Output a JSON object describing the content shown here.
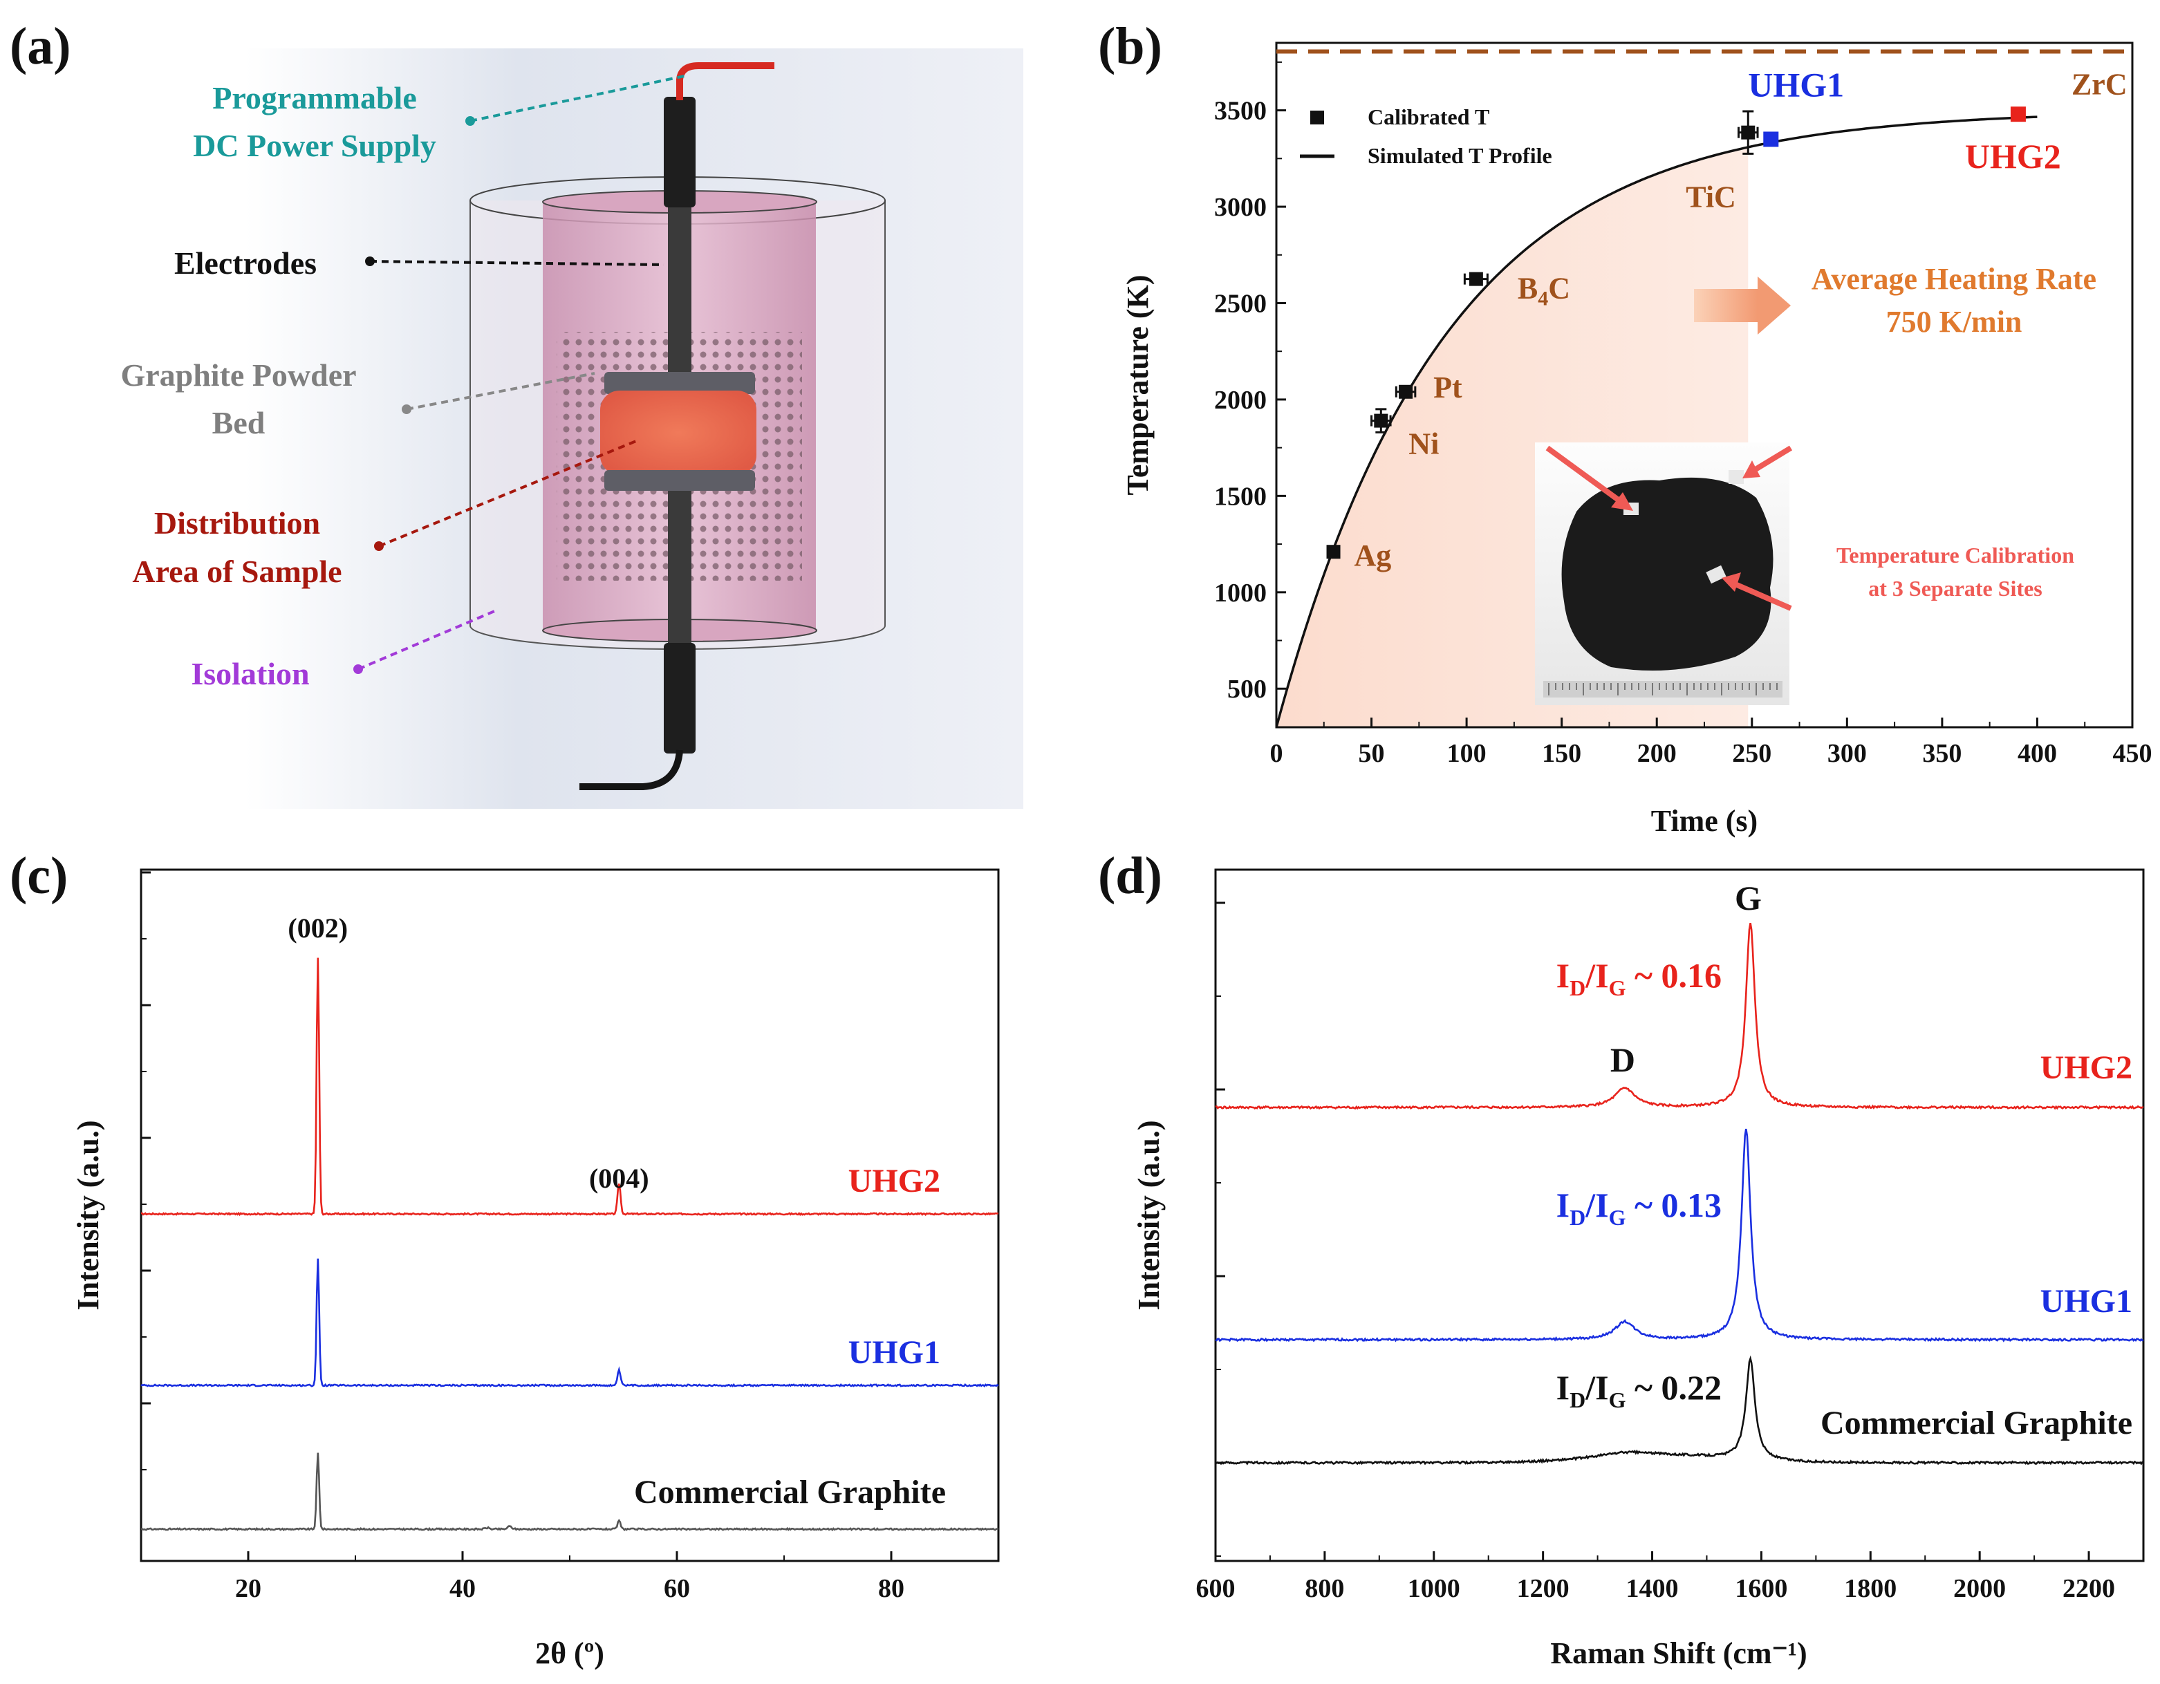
{
  "panel_labels": [
    "(a)",
    "(b)",
    "(c)",
    "(d)"
  ],
  "colors": {
    "red": "#e8231c",
    "blue": "#1a2fe0",
    "black": "#111111",
    "brown": "#a0521c",
    "orange": "#e07a2e",
    "teal": "#1a9a9a",
    "darkred": "#a6180e",
    "gray": "#7f7f7f",
    "purple": "#a23ad8",
    "pink": "#f4a9a4"
  },
  "panel_a": {
    "labels": {
      "power": [
        "Programmable",
        "DC Power Supply"
      ],
      "electrodes": "Electrodes",
      "powder": [
        "Graphite Powder",
        "Bed"
      ],
      "sample": [
        "Distribution",
        "Area of Sample"
      ],
      "isolation": "Isolation"
    }
  },
  "chart_data": [
    {
      "panel": "(b)",
      "type": "scatter",
      "xlabel": "Time (s)",
      "ylabel": "Temperature (K)",
      "xlim": [
        0,
        450
      ],
      "ylim": [
        300,
        3850
      ],
      "xticks": [
        0,
        50,
        100,
        150,
        200,
        250,
        300,
        350,
        400,
        450
      ],
      "yticks": [
        500,
        1000,
        1500,
        2000,
        2500,
        3000,
        3500
      ],
      "legend": [
        "Calibrated T",
        "Simulated T Profile"
      ],
      "calibrated_points": [
        {
          "label": "Ag",
          "t": 30,
          "T": 1210,
          "xerr": 2,
          "yerr": 15
        },
        {
          "label": "Ni",
          "t": 55,
          "T": 1890,
          "xerr": 5,
          "yerr": 60
        },
        {
          "label": "Pt",
          "t": 68,
          "T": 2040,
          "xerr": 5,
          "yerr": 20
        },
        {
          "label": "B4C",
          "t": 105,
          "T": 2625,
          "xerr": 6,
          "yerr": 20
        },
        {
          "label": "TiC",
          "t": 248,
          "T": 3385,
          "xerr": 5,
          "yerr": 110
        }
      ],
      "sample_points": [
        {
          "label": "UHG1",
          "t": 260,
          "T": 3350,
          "color": "#1a2fe0"
        },
        {
          "label": "UHG2",
          "t": 390,
          "T": 3480,
          "color": "#e8231c"
        }
      ],
      "simulated_profile": {
        "model": "T = 3500 - 3200*exp(-t/88)",
        "t_range": [
          0,
          400
        ]
      },
      "zrc_line_T": 3805,
      "zrc_label": "ZrC",
      "annotations": {
        "rate_title": "Average Heating Rate",
        "rate_value": "750 K/min",
        "inset_caption": [
          "Temperature Calibration",
          "at 3 Separate Sites"
        ]
      }
    },
    {
      "panel": "(c)",
      "type": "line",
      "xlabel": "2θ (º)",
      "ylabel": "Intensity (a.u.)",
      "xlim": [
        10,
        90
      ],
      "xticks": [
        20,
        40,
        60,
        80
      ],
      "peaks_2theta": [
        26.5,
        54.6
      ],
      "peak_labels": [
        "(002)",
        "(004)"
      ],
      "series": [
        {
          "name": "UHG2",
          "color": "#e8231c",
          "peak_002": 1.0,
          "peak_004": 0.04
        },
        {
          "name": "UHG1",
          "color": "#1a2fe0",
          "peak_002": 0.76,
          "peak_004": 0.03
        },
        {
          "name": "Commercial Graphite",
          "color": "#555555",
          "peak_002": 0.55,
          "peak_004": 0.02
        }
      ]
    },
    {
      "panel": "(d)",
      "type": "line",
      "xlabel": "Raman Shift (cm⁻¹)",
      "ylabel": "Intensity (a.u.)",
      "xlim": [
        600,
        2300
      ],
      "xticks": [
        600,
        800,
        1000,
        1200,
        1400,
        1600,
        1800,
        2000,
        2200
      ],
      "bands": {
        "D": 1350,
        "G": 1580
      },
      "band_labels": [
        "D",
        "G"
      ],
      "ratio_prefix": "I",
      "ratio_sub_d": "D",
      "ratio_sub_g": "G",
      "series": [
        {
          "name": "UHG2",
          "color": "#e8231c",
          "ratio": "~ 0.16",
          "ratio_value": 0.16
        },
        {
          "name": "UHG1",
          "color": "#1a2fe0",
          "ratio": "~ 0.13",
          "ratio_value": 0.13
        },
        {
          "name": "Commercial Graphite",
          "color": "#111111",
          "ratio": "~ 0.22",
          "ratio_value": 0.22
        }
      ]
    }
  ]
}
